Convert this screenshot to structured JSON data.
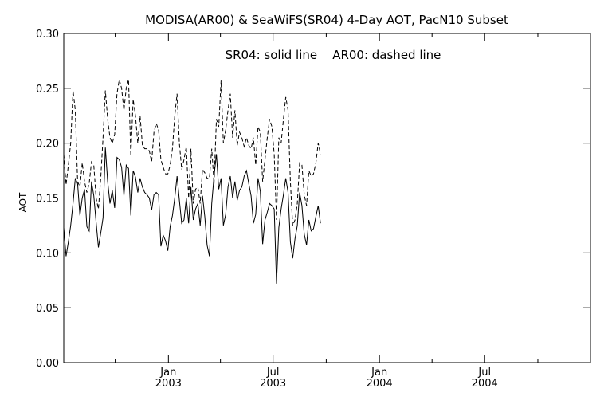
{
  "chart_data": {
    "type": "line",
    "title": "MODISA(AR00) & SeaWiFS(SR04) 4-Day AOT, PacN10 Subset",
    "annotation": "SR04: solid line    AR00: dashed line",
    "ylabel": "AOT",
    "xlabel": "",
    "ylim": [
      0.0,
      0.3
    ],
    "xlim": [
      "2002-07-04",
      "2004-12-31"
    ],
    "y_ticks": [
      "0.00",
      "0.05",
      "0.10",
      "0.15",
      "0.20",
      "0.25",
      "0.30"
    ],
    "x_ticks": [
      {
        "date": "2003-01-01",
        "label_line1": "Jan",
        "label_line2": "2003"
      },
      {
        "date": "2003-07-01",
        "label_line1": "Jul",
        "label_line2": "2003"
      },
      {
        "date": "2004-01-01",
        "label_line1": "Jan",
        "label_line2": "2004"
      },
      {
        "date": "2004-07-01",
        "label_line1": "Jul",
        "label_line2": "2004"
      }
    ],
    "minor_x_ticks": [
      "2002-10-01",
      "2003-04-01",
      "2003-10-01",
      "2004-04-01",
      "2004-10-01"
    ],
    "grid": false,
    "series": [
      {
        "name": "SR04",
        "style": "solid",
        "points": [
          [
            "2002-07-04",
            0.123
          ],
          [
            "2002-07-08",
            0.097
          ],
          [
            "2002-07-12",
            0.11
          ],
          [
            "2002-07-16",
            0.125
          ],
          [
            "2002-07-20",
            0.145
          ],
          [
            "2002-07-24",
            0.168
          ],
          [
            "2002-07-28",
            0.163
          ],
          [
            "2002-08-01",
            0.134
          ],
          [
            "2002-08-05",
            0.15
          ],
          [
            "2002-08-09",
            0.158
          ],
          [
            "2002-08-13",
            0.124
          ],
          [
            "2002-08-17",
            0.12
          ],
          [
            "2002-08-21",
            0.165
          ],
          [
            "2002-08-25",
            0.152
          ],
          [
            "2002-08-29",
            0.128
          ],
          [
            "2002-09-02",
            0.105
          ],
          [
            "2002-09-06",
            0.118
          ],
          [
            "2002-09-10",
            0.132
          ],
          [
            "2002-09-14",
            0.196
          ],
          [
            "2002-09-18",
            0.165
          ],
          [
            "2002-09-22",
            0.145
          ],
          [
            "2002-09-26",
            0.157
          ],
          [
            "2002-09-30",
            0.141
          ],
          [
            "2002-10-04",
            0.187
          ],
          [
            "2002-10-08",
            0.185
          ],
          [
            "2002-10-12",
            0.178
          ],
          [
            "2002-10-16",
            0.152
          ],
          [
            "2002-10-20",
            0.18
          ],
          [
            "2002-10-24",
            0.177
          ],
          [
            "2002-10-28",
            0.134
          ],
          [
            "2002-11-01",
            0.175
          ],
          [
            "2002-11-05",
            0.169
          ],
          [
            "2002-11-09",
            0.155
          ],
          [
            "2002-11-13",
            0.168
          ],
          [
            "2002-11-17",
            0.16
          ],
          [
            "2002-11-21",
            0.155
          ],
          [
            "2002-11-25",
            0.153
          ],
          [
            "2002-11-29",
            0.15
          ],
          [
            "2002-12-03",
            0.139
          ],
          [
            "2002-12-07",
            0.153
          ],
          [
            "2002-12-11",
            0.155
          ],
          [
            "2002-12-15",
            0.153
          ],
          [
            "2002-12-19",
            0.106
          ],
          [
            "2002-12-23",
            0.116
          ],
          [
            "2002-12-27",
            0.111
          ],
          [
            "2002-12-31",
            0.102
          ],
          [
            "2003-01-04",
            0.124
          ],
          [
            "2003-01-08",
            0.134
          ],
          [
            "2003-01-12",
            0.15
          ],
          [
            "2003-01-16",
            0.17
          ],
          [
            "2003-01-20",
            0.148
          ],
          [
            "2003-01-24",
            0.127
          ],
          [
            "2003-01-28",
            0.13
          ],
          [
            "2003-02-01",
            0.15
          ],
          [
            "2003-02-05",
            0.127
          ],
          [
            "2003-02-09",
            0.16
          ],
          [
            "2003-02-13",
            0.13
          ],
          [
            "2003-02-17",
            0.14
          ],
          [
            "2003-02-21",
            0.145
          ],
          [
            "2003-02-25",
            0.125
          ],
          [
            "2003-03-01",
            0.152
          ],
          [
            "2003-03-05",
            0.133
          ],
          [
            "2003-03-09",
            0.107
          ],
          [
            "2003-03-13",
            0.097
          ],
          [
            "2003-03-17",
            0.145
          ],
          [
            "2003-03-21",
            0.17
          ],
          [
            "2003-03-25",
            0.19
          ],
          [
            "2003-03-29",
            0.158
          ],
          [
            "2003-04-02",
            0.168
          ],
          [
            "2003-04-06",
            0.125
          ],
          [
            "2003-04-10",
            0.135
          ],
          [
            "2003-04-14",
            0.16
          ],
          [
            "2003-04-18",
            0.17
          ],
          [
            "2003-04-22",
            0.15
          ],
          [
            "2003-04-26",
            0.165
          ],
          [
            "2003-04-30",
            0.148
          ],
          [
            "2003-05-04",
            0.157
          ],
          [
            "2003-05-08",
            0.16
          ],
          [
            "2003-05-12",
            0.17
          ],
          [
            "2003-05-16",
            0.175
          ],
          [
            "2003-05-20",
            0.163
          ],
          [
            "2003-05-24",
            0.152
          ],
          [
            "2003-05-28",
            0.127
          ],
          [
            "2003-06-01",
            0.135
          ],
          [
            "2003-06-05",
            0.168
          ],
          [
            "2003-06-09",
            0.156
          ],
          [
            "2003-06-13",
            0.108
          ],
          [
            "2003-06-17",
            0.13
          ],
          [
            "2003-06-21",
            0.137
          ],
          [
            "2003-06-25",
            0.145
          ],
          [
            "2003-06-29",
            0.143
          ],
          [
            "2003-07-03",
            0.14
          ],
          [
            "2003-07-07",
            0.072
          ],
          [
            "2003-07-11",
            0.123
          ],
          [
            "2003-07-15",
            0.14
          ],
          [
            "2003-07-19",
            0.153
          ],
          [
            "2003-07-23",
            0.168
          ],
          [
            "2003-07-27",
            0.155
          ],
          [
            "2003-07-31",
            0.11
          ],
          [
            "2003-08-04",
            0.095
          ],
          [
            "2003-08-08",
            0.113
          ],
          [
            "2003-08-12",
            0.125
          ],
          [
            "2003-08-16",
            0.155
          ],
          [
            "2003-08-20",
            0.143
          ],
          [
            "2003-08-24",
            0.117
          ],
          [
            "2003-08-28",
            0.107
          ],
          [
            "2003-09-01",
            0.13
          ],
          [
            "2003-09-05",
            0.12
          ],
          [
            "2003-09-09",
            0.122
          ],
          [
            "2003-09-13",
            0.133
          ],
          [
            "2003-09-17",
            0.143
          ],
          [
            "2003-09-21",
            0.127
          ]
        ]
      },
      {
        "name": "AR00",
        "style": "dashed",
        "points": [
          [
            "2002-07-04",
            0.19
          ],
          [
            "2002-07-08",
            0.162
          ],
          [
            "2002-07-12",
            0.18
          ],
          [
            "2002-07-16",
            0.2
          ],
          [
            "2002-07-20",
            0.248
          ],
          [
            "2002-07-24",
            0.23
          ],
          [
            "2002-07-28",
            0.165
          ],
          [
            "2002-08-01",
            0.16
          ],
          [
            "2002-08-05",
            0.182
          ],
          [
            "2002-08-09",
            0.165
          ],
          [
            "2002-08-13",
            0.155
          ],
          [
            "2002-08-17",
            0.163
          ],
          [
            "2002-08-21",
            0.183
          ],
          [
            "2002-08-25",
            0.18
          ],
          [
            "2002-08-29",
            0.15
          ],
          [
            "2002-09-02",
            0.14
          ],
          [
            "2002-09-06",
            0.168
          ],
          [
            "2002-09-10",
            0.205
          ],
          [
            "2002-09-14",
            0.248
          ],
          [
            "2002-09-18",
            0.222
          ],
          [
            "2002-09-22",
            0.205
          ],
          [
            "2002-09-26",
            0.2
          ],
          [
            "2002-09-30",
            0.208
          ],
          [
            "2002-10-04",
            0.245
          ],
          [
            "2002-10-08",
            0.258
          ],
          [
            "2002-10-12",
            0.25
          ],
          [
            "2002-10-16",
            0.23
          ],
          [
            "2002-10-20",
            0.25
          ],
          [
            "2002-10-24",
            0.258
          ],
          [
            "2002-10-28",
            0.188
          ],
          [
            "2002-11-01",
            0.24
          ],
          [
            "2002-11-05",
            0.225
          ],
          [
            "2002-11-09",
            0.2
          ],
          [
            "2002-11-13",
            0.225
          ],
          [
            "2002-11-17",
            0.198
          ],
          [
            "2002-11-21",
            0.195
          ],
          [
            "2002-11-25",
            0.195
          ],
          [
            "2002-11-29",
            0.193
          ],
          [
            "2002-12-03",
            0.183
          ],
          [
            "2002-12-07",
            0.21
          ],
          [
            "2002-12-11",
            0.218
          ],
          [
            "2002-12-15",
            0.212
          ],
          [
            "2002-12-19",
            0.185
          ],
          [
            "2002-12-23",
            0.178
          ],
          [
            "2002-12-27",
            0.172
          ],
          [
            "2002-12-31",
            0.172
          ],
          [
            "2003-01-04",
            0.18
          ],
          [
            "2003-01-08",
            0.195
          ],
          [
            "2003-01-12",
            0.225
          ],
          [
            "2003-01-16",
            0.245
          ],
          [
            "2003-01-20",
            0.2
          ],
          [
            "2003-01-24",
            0.176
          ],
          [
            "2003-01-28",
            0.185
          ],
          [
            "2003-02-01",
            0.197
          ],
          [
            "2003-02-05",
            0.15
          ],
          [
            "2003-02-09",
            0.195
          ],
          [
            "2003-02-13",
            0.145
          ],
          [
            "2003-02-17",
            0.158
          ],
          [
            "2003-02-21",
            0.16
          ],
          [
            "2003-02-25",
            0.145
          ],
          [
            "2003-03-01",
            0.176
          ],
          [
            "2003-03-05",
            0.173
          ],
          [
            "2003-03-09",
            0.168
          ],
          [
            "2003-03-13",
            0.168
          ],
          [
            "2003-03-17",
            0.195
          ],
          [
            "2003-03-21",
            0.163
          ],
          [
            "2003-03-25",
            0.222
          ],
          [
            "2003-03-29",
            0.215
          ],
          [
            "2003-04-02",
            0.257
          ],
          [
            "2003-04-06",
            0.2
          ],
          [
            "2003-04-10",
            0.212
          ],
          [
            "2003-04-14",
            0.23
          ],
          [
            "2003-04-18",
            0.245
          ],
          [
            "2003-04-22",
            0.205
          ],
          [
            "2003-04-26",
            0.23
          ],
          [
            "2003-04-30",
            0.198
          ],
          [
            "2003-05-04",
            0.21
          ],
          [
            "2003-05-08",
            0.205
          ],
          [
            "2003-05-12",
            0.197
          ],
          [
            "2003-05-16",
            0.205
          ],
          [
            "2003-05-20",
            0.198
          ],
          [
            "2003-05-24",
            0.195
          ],
          [
            "2003-05-28",
            0.205
          ],
          [
            "2003-06-01",
            0.18
          ],
          [
            "2003-06-05",
            0.215
          ],
          [
            "2003-06-09",
            0.21
          ],
          [
            "2003-06-13",
            0.165
          ],
          [
            "2003-06-17",
            0.185
          ],
          [
            "2003-06-21",
            0.205
          ],
          [
            "2003-06-25",
            0.222
          ],
          [
            "2003-06-29",
            0.215
          ],
          [
            "2003-07-03",
            0.19
          ],
          [
            "2003-07-07",
            0.13
          ],
          [
            "2003-07-11",
            0.205
          ],
          [
            "2003-07-15",
            0.2
          ],
          [
            "2003-07-19",
            0.222
          ],
          [
            "2003-07-23",
            0.242
          ],
          [
            "2003-07-27",
            0.23
          ],
          [
            "2003-07-31",
            0.165
          ],
          [
            "2003-08-04",
            0.125
          ],
          [
            "2003-08-08",
            0.13
          ],
          [
            "2003-08-12",
            0.145
          ],
          [
            "2003-08-16",
            0.182
          ],
          [
            "2003-08-20",
            0.18
          ],
          [
            "2003-08-24",
            0.153
          ],
          [
            "2003-08-28",
            0.143
          ],
          [
            "2003-09-01",
            0.175
          ],
          [
            "2003-09-05",
            0.17
          ],
          [
            "2003-09-09",
            0.172
          ],
          [
            "2003-09-13",
            0.182
          ],
          [
            "2003-09-17",
            0.2
          ],
          [
            "2003-09-21",
            0.19
          ]
        ]
      }
    ]
  }
}
